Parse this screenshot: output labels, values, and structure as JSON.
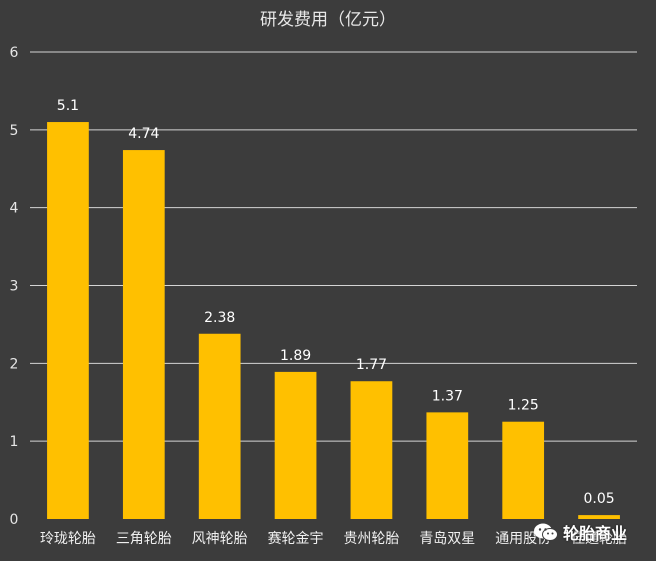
{
  "chart_data": {
    "type": "bar",
    "title": "研发费用（亿元）",
    "categories": [
      "玲珑轮胎",
      "三角轮胎",
      "风神轮胎",
      "赛轮金宇",
      "贵州轮胎",
      "青岛双星",
      "通用股份",
      "佳通轮胎"
    ],
    "values": [
      5.1,
      4.74,
      2.38,
      1.89,
      1.77,
      1.37,
      1.25,
      0.05
    ],
    "data_labels": [
      "5.1",
      "4.74",
      "2.38",
      "1.89",
      "1.77",
      "1.37",
      "1.25",
      "0.05"
    ],
    "ylim": [
      0,
      6
    ],
    "yticks": [
      0,
      1,
      2,
      3,
      4,
      5,
      6
    ],
    "grid": true,
    "legend": "none",
    "colors": {
      "bar": "#ffc000",
      "background": "#3c3c3c",
      "grid": "#d4d4d4",
      "text": "#ffffff"
    }
  },
  "watermark": {
    "icon": "wechat-icon",
    "text": "轮胎商业"
  }
}
